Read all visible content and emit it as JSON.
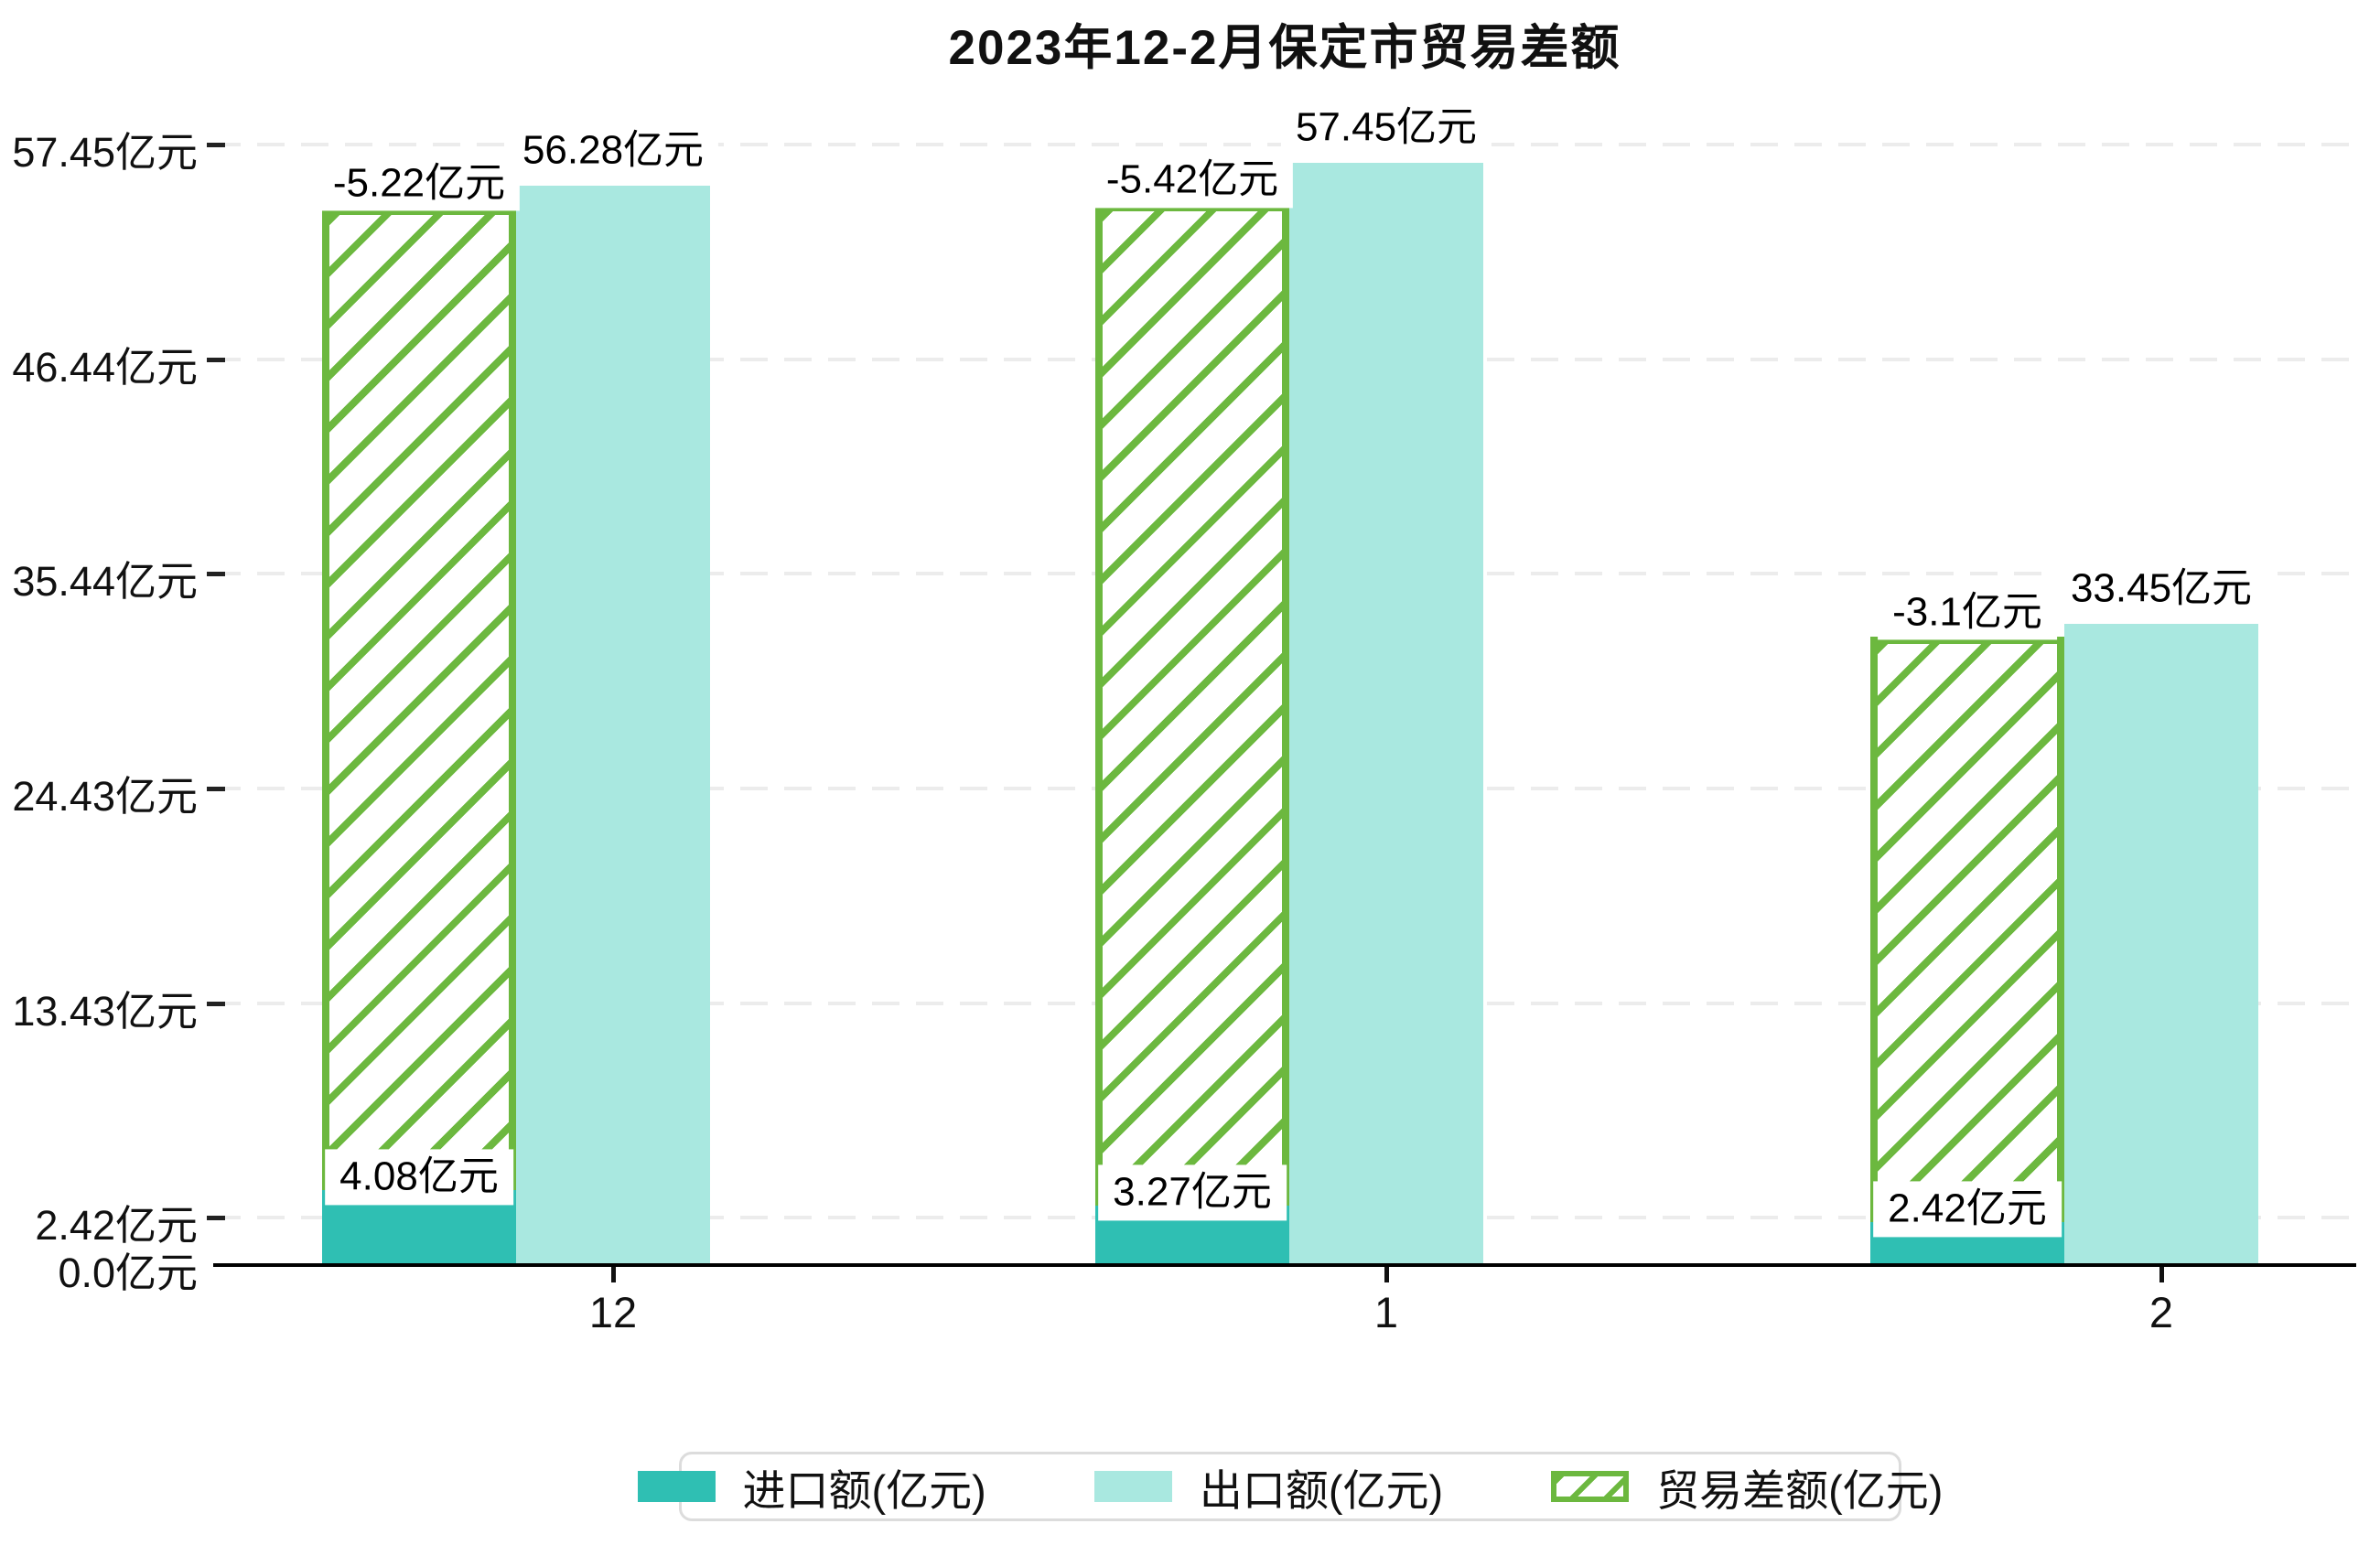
{
  "title": "2023年12-2月保定市贸易差额",
  "chart_data": {
    "type": "bar",
    "title": "2023年12-2月保定市贸易差额",
    "categories": [
      "12",
      "1",
      "2"
    ],
    "unit": "亿元",
    "series": [
      {
        "name": "进口额(亿元)",
        "values": [
          4.08,
          3.27,
          2.42
        ],
        "labels": [
          "4.08亿元",
          "3.27亿元",
          "2.42亿元"
        ],
        "color": "#2FBFB3",
        "style": "solid"
      },
      {
        "name": "出口额(亿元)",
        "values": [
          56.28,
          57.45,
          33.45
        ],
        "labels": [
          "56.28亿元",
          "57.45亿元",
          "33.45亿元"
        ],
        "color": "#A9E8E0",
        "style": "solid"
      },
      {
        "name": "贸易差额(亿元)",
        "values": [
          -5.22,
          -5.42,
          -3.1
        ],
        "labels": [
          "-5.22亿元",
          "-5.42亿元",
          "-3.1亿元"
        ],
        "color": "#6CB83F",
        "style": "hatched"
      }
    ],
    "yticks": [
      {
        "value": 57.45,
        "label": "57.45亿元"
      },
      {
        "value": 46.44,
        "label": "46.44亿元"
      },
      {
        "value": 35.44,
        "label": "35.44亿元"
      },
      {
        "value": 24.43,
        "label": "24.43亿元"
      },
      {
        "value": 13.43,
        "label": "13.43亿元"
      },
      {
        "value": 2.42,
        "label": "2.42亿元"
      },
      {
        "value": 0.0,
        "label": "0.0亿元"
      }
    ],
    "ylim": [
      0,
      60.5
    ],
    "grid": "horizontal-dashed",
    "legend_position": "bottom",
    "colors": {
      "grid": "#ECECEC",
      "axis": "#000000",
      "text": "#111111",
      "label_box_bg": "#FFFFFF",
      "legend_border": "#DCDCDC"
    }
  }
}
